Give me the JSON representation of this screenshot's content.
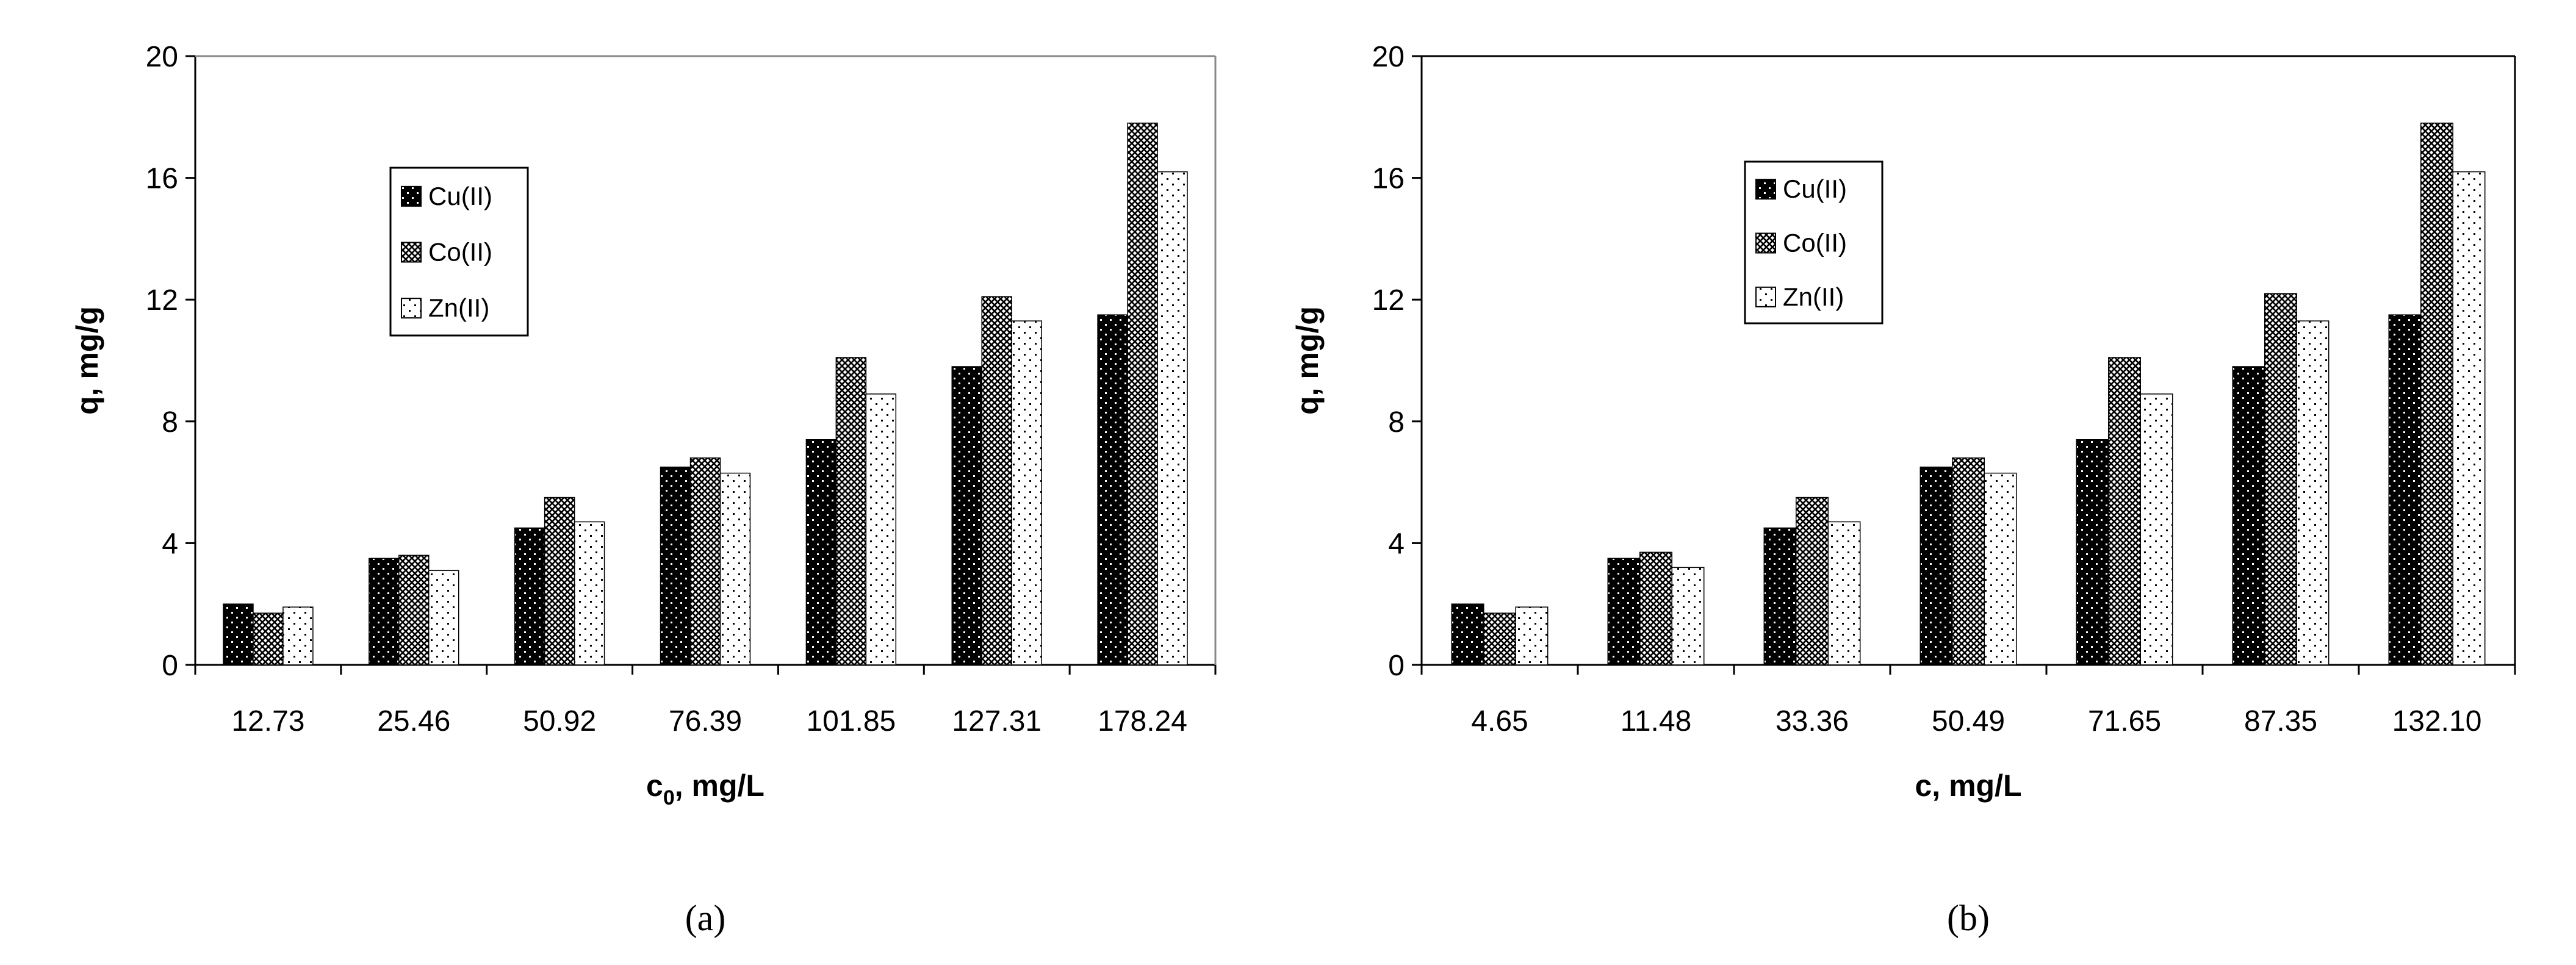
{
  "chart_data": [
    {
      "type": "bar",
      "panel_label": "(a)",
      "xlabel": "c0, mg/L",
      "xlabel_main": "c",
      "xlabel_sub": "0",
      "xlabel_rest": ", mg/L",
      "ylabel": "q, mg/g",
      "ylim": [
        0,
        20
      ],
      "yticks": [
        "0",
        "4",
        "8",
        "12",
        "16",
        "20"
      ],
      "categories": [
        "12.73",
        "25.46",
        "50.92",
        "76.39",
        "101.85",
        "127.31",
        "178.24"
      ],
      "legend_position": "upper-left",
      "series": [
        {
          "name": "Cu(II)",
          "values": [
            2.0,
            3.5,
            4.5,
            6.5,
            7.4,
            9.8,
            11.5
          ]
        },
        {
          "name": "Co(II)",
          "values": [
            1.7,
            3.6,
            5.5,
            6.8,
            10.1,
            12.1,
            17.8
          ]
        },
        {
          "name": "Zn(II)",
          "values": [
            1.9,
            3.1,
            4.7,
            6.3,
            8.9,
            11.3,
            16.2
          ]
        }
      ]
    },
    {
      "type": "bar",
      "panel_label": "(b)",
      "xlabel": "c, mg/L",
      "xlabel_main": "c",
      "xlabel_sub": "",
      "xlabel_rest": ", mg/L",
      "ylabel": "q, mg/g",
      "ylim": [
        0,
        20
      ],
      "yticks": [
        "0",
        "4",
        "8",
        "12",
        "16",
        "20"
      ],
      "categories": [
        "4.65",
        "11.48",
        "33.36",
        "50.49",
        "71.65",
        "87.35",
        "132.10"
      ],
      "legend_position": "upper-left",
      "series": [
        {
          "name": "Cu(II)",
          "values": [
            2.0,
            3.5,
            4.5,
            6.5,
            7.4,
            9.8,
            11.5
          ]
        },
        {
          "name": "Co(II)",
          "values": [
            1.7,
            3.7,
            5.5,
            6.8,
            10.1,
            12.2,
            17.8
          ]
        },
        {
          "name": "Zn(II)",
          "values": [
            1.9,
            3.2,
            4.7,
            6.3,
            8.9,
            11.3,
            16.2
          ]
        }
      ]
    }
  ]
}
